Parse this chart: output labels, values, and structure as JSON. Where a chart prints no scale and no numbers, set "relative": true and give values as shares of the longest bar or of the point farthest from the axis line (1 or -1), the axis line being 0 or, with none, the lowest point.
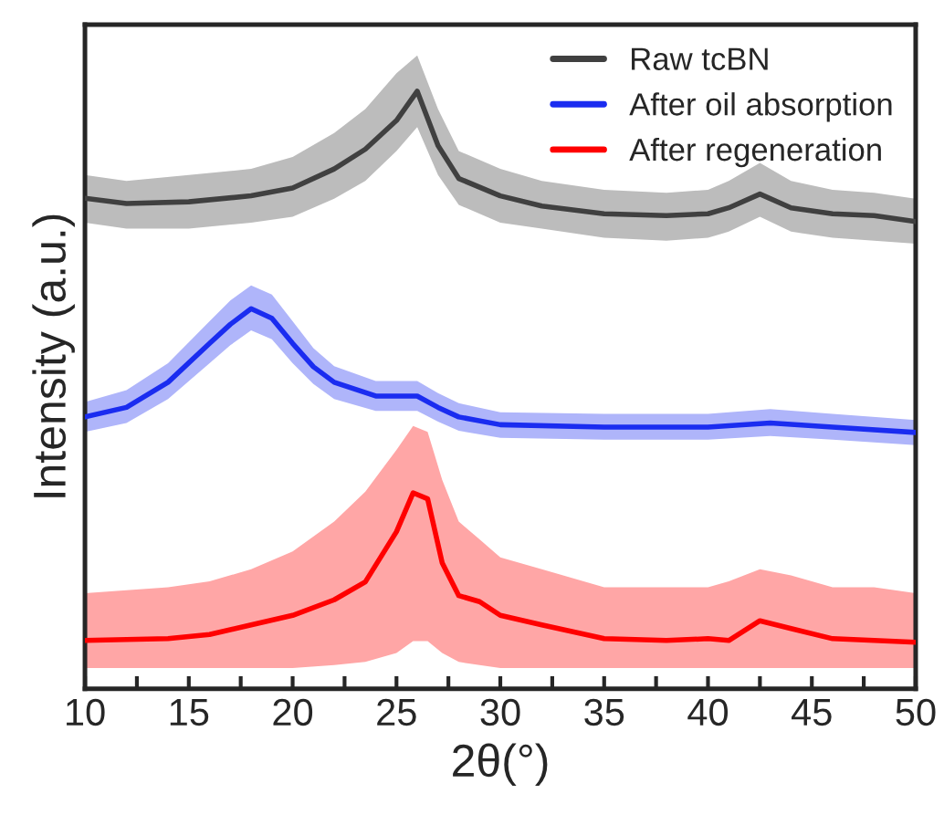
{
  "chart_data": {
    "type": "line",
    "relative": true,
    "xlabel": "2θ(°)",
    "ylabel": "Intensity (a.u.)",
    "xlim": [
      10,
      50
    ],
    "xticks": [
      10,
      {
        "value": 12.5,
        "label": null
      },
      15,
      {
        "value": 17.5,
        "label": null
      },
      20,
      {
        "value": 22.5,
        "label": null
      },
      25,
      {
        "value": 27.5,
        "label": null
      },
      30,
      {
        "value": 32.5,
        "label": null
      },
      35,
      {
        "value": 37.5,
        "label": null
      },
      40,
      {
        "value": 42.5,
        "label": null
      },
      45,
      {
        "value": 47.5,
        "label": null
      },
      50
    ],
    "legend": "top right",
    "grid": false,
    "series": [
      {
        "name": "Raw tcBN",
        "color": "#404040",
        "x": [
          10,
          12,
          15,
          18,
          20,
          22,
          23.5,
          25,
          26,
          27,
          28,
          30,
          32,
          35,
          38,
          40,
          41,
          42.5,
          44,
          46,
          48,
          50
        ],
        "values": [
          0.821,
          0.812,
          0.815,
          0.825,
          0.838,
          0.87,
          0.903,
          0.951,
          1.0,
          0.909,
          0.854,
          0.825,
          0.808,
          0.795,
          0.792,
          0.795,
          0.805,
          0.828,
          0.805,
          0.795,
          0.792,
          0.782
        ],
        "lower": [
          0.78,
          0.77,
          0.77,
          0.78,
          0.79,
          0.82,
          0.85,
          0.9,
          0.94,
          0.86,
          0.81,
          0.78,
          0.77,
          0.755,
          0.75,
          0.755,
          0.765,
          0.79,
          0.765,
          0.755,
          0.75,
          0.745
        ],
        "upper": [
          0.86,
          0.85,
          0.86,
          0.87,
          0.89,
          0.93,
          0.97,
          1.03,
          1.06,
          0.97,
          0.9,
          0.87,
          0.85,
          0.835,
          0.83,
          0.835,
          0.85,
          0.88,
          0.85,
          0.835,
          0.83,
          0.82
        ]
      },
      {
        "name": "After oil absorption",
        "color": "#1a2cf0",
        "x": [
          10,
          12,
          14,
          16,
          17,
          18,
          19,
          20,
          21,
          22,
          24,
          26,
          27,
          28,
          30,
          35,
          40,
          43,
          46,
          50
        ],
        "values": [
          0.455,
          0.471,
          0.513,
          0.578,
          0.61,
          0.636,
          0.62,
          0.578,
          0.539,
          0.513,
          0.49,
          0.49,
          0.471,
          0.455,
          0.442,
          0.438,
          0.438,
          0.445,
          0.438,
          0.429
        ],
        "lower": [
          0.43,
          0.445,
          0.485,
          0.545,
          0.575,
          0.6,
          0.585,
          0.545,
          0.51,
          0.485,
          0.465,
          0.465,
          0.447,
          0.432,
          0.42,
          0.417,
          0.417,
          0.423,
          0.417,
          0.408
        ],
        "upper": [
          0.48,
          0.5,
          0.545,
          0.615,
          0.65,
          0.675,
          0.66,
          0.615,
          0.57,
          0.54,
          0.515,
          0.515,
          0.495,
          0.478,
          0.463,
          0.46,
          0.46,
          0.468,
          0.46,
          0.45
        ]
      },
      {
        "name": "After regeneration",
        "color": "#ff0000",
        "x": [
          10,
          14,
          16,
          18,
          20,
          22,
          23.5,
          25,
          25.8,
          26.5,
          27.2,
          28,
          29,
          30,
          32,
          35,
          38,
          40,
          41,
          42.5,
          44,
          46,
          48,
          50
        ],
        "values": [
          0.081,
          0.084,
          0.091,
          0.107,
          0.123,
          0.149,
          0.179,
          0.263,
          0.328,
          0.318,
          0.211,
          0.156,
          0.146,
          0.123,
          0.107,
          0.084,
          0.081,
          0.084,
          0.081,
          0.114,
          0.101,
          0.084,
          0.081,
          0.078
        ],
        "lower": [
          0.035,
          0.035,
          0.035,
          0.035,
          0.035,
          0.04,
          0.045,
          0.06,
          0.08,
          0.08,
          0.06,
          0.045,
          0.04,
          0.035,
          0.035,
          0.035,
          0.035,
          0.035,
          0.035,
          0.035,
          0.035,
          0.035,
          0.035,
          0.035
        ],
        "upper": [
          0.16,
          0.17,
          0.18,
          0.2,
          0.23,
          0.28,
          0.33,
          0.4,
          0.44,
          0.43,
          0.35,
          0.28,
          0.25,
          0.22,
          0.2,
          0.17,
          0.17,
          0.17,
          0.18,
          0.2,
          0.19,
          0.17,
          0.17,
          0.16
        ]
      }
    ]
  }
}
